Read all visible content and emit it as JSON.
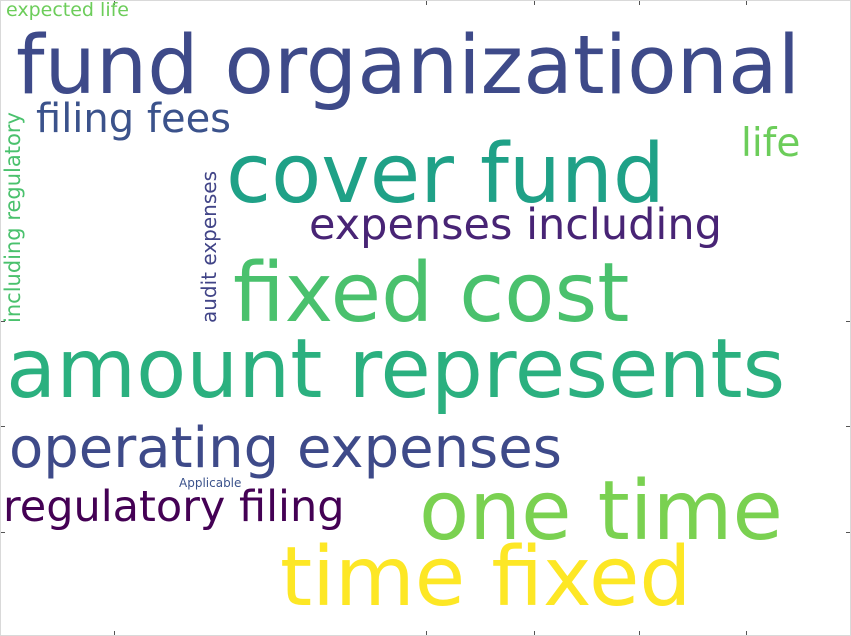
{
  "words": [
    {
      "text": "expected life",
      "color": "#6ccd5a"
    },
    {
      "text": "fund organizational",
      "color": "#3e4a89"
    },
    {
      "text": "filing fees",
      "color": "#3b528b"
    },
    {
      "text": "cover fund",
      "color": "#1fa187"
    },
    {
      "text": "life",
      "color": "#6ccd5a"
    },
    {
      "text": "expenses including",
      "color": "#482475"
    },
    {
      "text": "including regulatory",
      "color": "#4ac16d"
    },
    {
      "text": "audit expenses",
      "color": "#414487"
    },
    {
      "text": "fixed cost",
      "color": "#4ac16d"
    },
    {
      "text": "amount represents",
      "color": "#2bb07f"
    },
    {
      "text": "operating expenses",
      "color": "#3e4a89"
    },
    {
      "text": "Applicable",
      "color": "#3b528b"
    },
    {
      "text": "regulatory filing",
      "color": "#440154"
    },
    {
      "text": "one time",
      "color": "#7ad151"
    },
    {
      "text": "time fixed",
      "color": "#fde725"
    }
  ]
}
